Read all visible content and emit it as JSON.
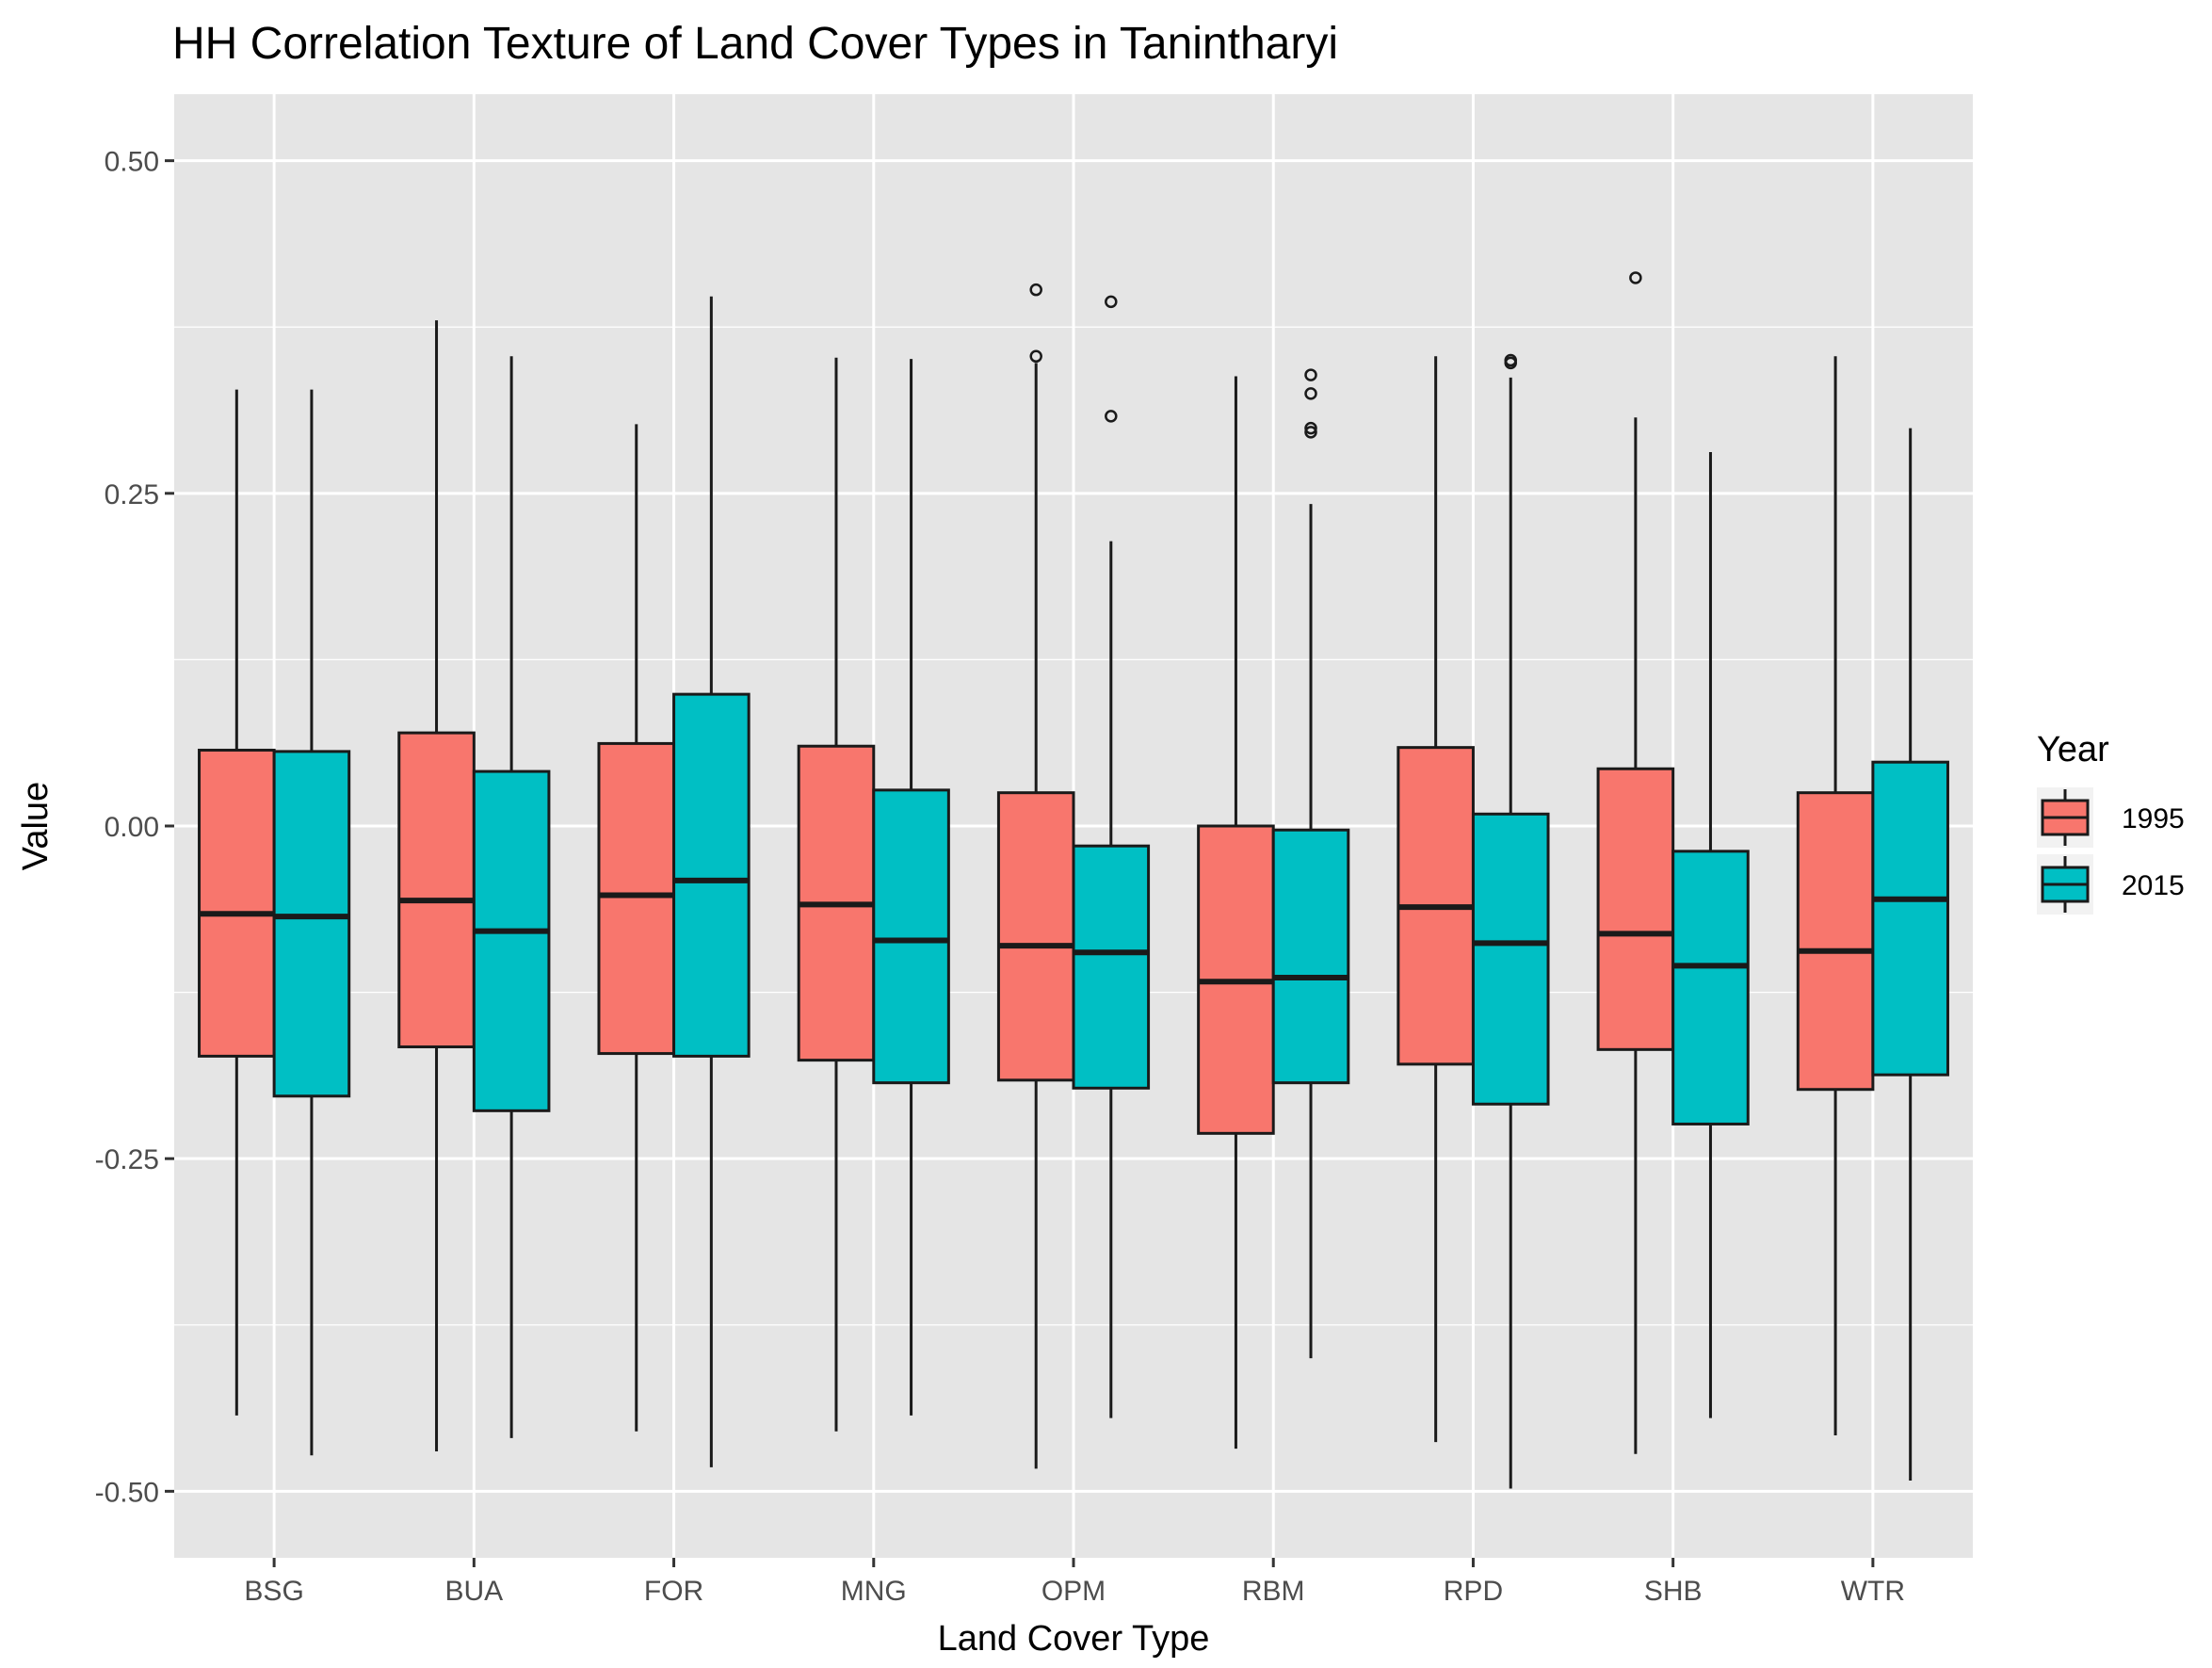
{
  "colors": {
    "panel_bg": "#e5e5e5",
    "grid": "#ffffff",
    "box_outline": "#1a1a1a",
    "tick_text": "#4d4d4d"
  },
  "chart_data": {
    "type": "boxplot",
    "title": "HH Correlation Texture of Land Cover Types in Tanintharyi",
    "xlabel": "Land Cover Type",
    "ylabel": "Value",
    "ylim": [
      -0.55,
      0.55
    ],
    "yticks": [
      -0.5,
      -0.25,
      0,
      0.25,
      0.5
    ],
    "ytick_labels": [
      "-0.50",
      "-0.25",
      "0.00",
      "0.25",
      "0.50"
    ],
    "grid": true,
    "legend": {
      "title": "Year",
      "position": "right"
    },
    "categories": [
      "BSG",
      "BUA",
      "FOR",
      "MNG",
      "OPM",
      "RBM",
      "RPD",
      "SHB",
      "WTR"
    ],
    "series": [
      {
        "name": "1995",
        "color": "#f8766d",
        "boxes": [
          {
            "lower_whisker": -0.443,
            "q1": -0.173,
            "median": -0.066,
            "q3": 0.057,
            "upper_whisker": 0.328,
            "outliers": []
          },
          {
            "lower_whisker": -0.47,
            "q1": -0.166,
            "median": -0.056,
            "q3": 0.07,
            "upper_whisker": 0.38,
            "outliers": []
          },
          {
            "lower_whisker": -0.455,
            "q1": -0.171,
            "median": -0.052,
            "q3": 0.062,
            "upper_whisker": 0.302,
            "outliers": []
          },
          {
            "lower_whisker": -0.455,
            "q1": -0.176,
            "median": -0.059,
            "q3": 0.06,
            "upper_whisker": 0.352,
            "outliers": []
          },
          {
            "lower_whisker": -0.483,
            "q1": -0.191,
            "median": -0.09,
            "q3": 0.025,
            "upper_whisker": 0.348,
            "outliers": [
              0.353,
              0.403
            ]
          },
          {
            "lower_whisker": -0.468,
            "q1": -0.231,
            "median": -0.117,
            "q3": 0.0,
            "upper_whisker": 0.338,
            "outliers": []
          },
          {
            "lower_whisker": -0.463,
            "q1": -0.179,
            "median": -0.061,
            "q3": 0.059,
            "upper_whisker": 0.353,
            "outliers": []
          },
          {
            "lower_whisker": -0.472,
            "q1": -0.168,
            "median": -0.081,
            "q3": 0.043,
            "upper_whisker": 0.307,
            "outliers": [
              0.412
            ]
          },
          {
            "lower_whisker": -0.458,
            "q1": -0.198,
            "median": -0.094,
            "q3": 0.025,
            "upper_whisker": 0.353,
            "outliers": []
          }
        ]
      },
      {
        "name": "2015",
        "color": "#00bfc4",
        "boxes": [
          {
            "lower_whisker": -0.473,
            "q1": -0.203,
            "median": -0.068,
            "q3": 0.056,
            "upper_whisker": 0.328,
            "outliers": []
          },
          {
            "lower_whisker": -0.46,
            "q1": -0.214,
            "median": -0.079,
            "q3": 0.041,
            "upper_whisker": 0.353,
            "outliers": []
          },
          {
            "lower_whisker": -0.482,
            "q1": -0.173,
            "median": -0.041,
            "q3": 0.099,
            "upper_whisker": 0.398,
            "outliers": []
          },
          {
            "lower_whisker": -0.443,
            "q1": -0.193,
            "median": -0.086,
            "q3": 0.027,
            "upper_whisker": 0.351,
            "outliers": []
          },
          {
            "lower_whisker": -0.445,
            "q1": -0.197,
            "median": -0.095,
            "q3": -0.015,
            "upper_whisker": 0.214,
            "outliers": [
              0.308,
              0.394
            ]
          },
          {
            "lower_whisker": -0.4,
            "q1": -0.193,
            "median": -0.114,
            "q3": -0.003,
            "upper_whisker": 0.242,
            "outliers": [
              0.296,
              0.299,
              0.325,
              0.339
            ]
          },
          {
            "lower_whisker": -0.498,
            "q1": -0.209,
            "median": -0.088,
            "q3": 0.009,
            "upper_whisker": 0.337,
            "outliers": [
              0.348,
              0.35
            ]
          },
          {
            "lower_whisker": -0.445,
            "q1": -0.224,
            "median": -0.105,
            "q3": -0.019,
            "upper_whisker": 0.281,
            "outliers": []
          },
          {
            "lower_whisker": -0.492,
            "q1": -0.187,
            "median": -0.055,
            "q3": 0.048,
            "upper_whisker": 0.299,
            "outliers": []
          }
        ]
      }
    ]
  }
}
